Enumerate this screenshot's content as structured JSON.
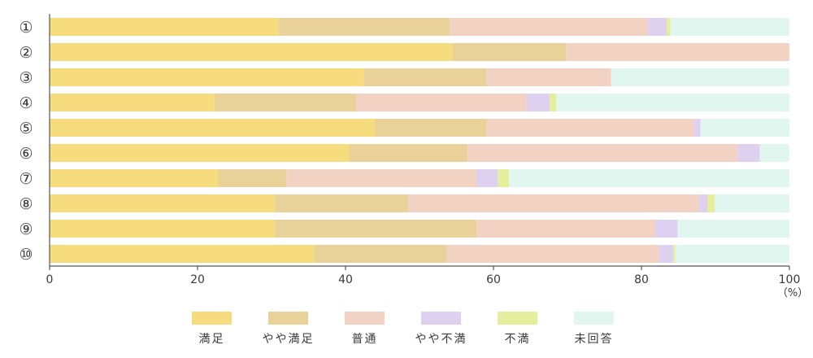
{
  "chart_data": {
    "type": "bar",
    "orientation": "horizontal",
    "stacked": true,
    "categories": [
      "①",
      "②",
      "③",
      "④",
      "⑤",
      "⑥",
      "⑦",
      "⑧",
      "⑨",
      "⑩"
    ],
    "series": [
      {
        "name": "満足",
        "color": "#f6dc7c",
        "values": [
          30.9,
          54.5,
          42.5,
          22.3,
          44.0,
          40.5,
          22.8,
          30.4,
          30.4,
          35.8
        ]
      },
      {
        "name": "やや満足",
        "color": "#e8d29a",
        "values": [
          23.2,
          15.3,
          16.6,
          19.2,
          15.1,
          16.0,
          9.2,
          18.1,
          27.3,
          17.9
        ]
      },
      {
        "name": "普通",
        "color": "#f2d3c3",
        "values": [
          26.8,
          30.2,
          16.8,
          23.0,
          28.0,
          36.5,
          25.7,
          39.3,
          24.2,
          28.7
        ]
      },
      {
        "name": "やや不満",
        "color": "#ddd1ef",
        "values": [
          2.5,
          0.0,
          0.0,
          3.1,
          0.9,
          3.0,
          2.9,
          1.1,
          3.0,
          1.9
        ]
      },
      {
        "name": "不満",
        "color": "#e5ee9c",
        "values": [
          0.5,
          0.0,
          0.0,
          0.9,
          0.0,
          0.0,
          1.5,
          1.0,
          0.0,
          0.3
        ]
      },
      {
        "name": "未回答",
        "color": "#e0f6ef",
        "values": [
          16.1,
          0.0,
          24.1,
          31.5,
          12.0,
          4.0,
          37.9,
          10.1,
          15.1,
          15.4
        ]
      }
    ],
    "xlim": [
      0,
      100
    ],
    "xticks": [
      "0",
      "20",
      "40",
      "60",
      "80",
      "100"
    ],
    "xunit": "（%）",
    "grid": false,
    "legend_position": "bottom"
  }
}
